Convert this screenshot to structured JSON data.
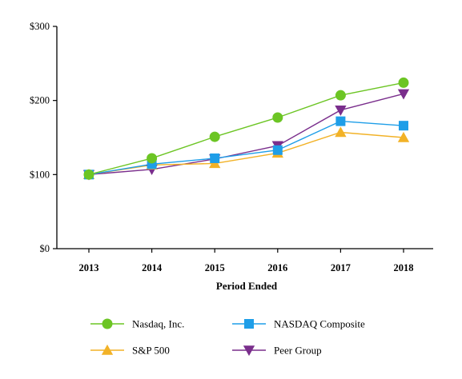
{
  "chart_data": {
    "type": "line",
    "title": "",
    "xlabel": "Period Ended",
    "ylabel": "",
    "x": [
      "2013",
      "2014",
      "2015",
      "2016",
      "2017",
      "2018"
    ],
    "y_ticks": [
      "$0",
      "$100",
      "$200",
      "$300"
    ],
    "ylim": [
      0,
      300
    ],
    "grid": false,
    "legend_position": "bottom",
    "series": [
      {
        "name": "Nasdaq, Inc.",
        "values": [
          100,
          122,
          151,
          177,
          207,
          224
        ],
        "color": "#6cc524",
        "marker": "circle"
      },
      {
        "name": "NASDAQ Composite",
        "values": [
          100,
          114,
          122,
          133,
          172,
          166
        ],
        "color": "#1e9ee8",
        "marker": "square"
      },
      {
        "name": "S&P 500",
        "values": [
          100,
          113,
          115,
          129,
          157,
          150
        ],
        "color": "#f2b227",
        "marker": "triangle-up"
      },
      {
        "name": "Peer Group",
        "values": [
          100,
          107,
          121,
          139,
          187,
          209
        ],
        "color": "#7a2e8c",
        "marker": "triangle-down"
      }
    ]
  }
}
